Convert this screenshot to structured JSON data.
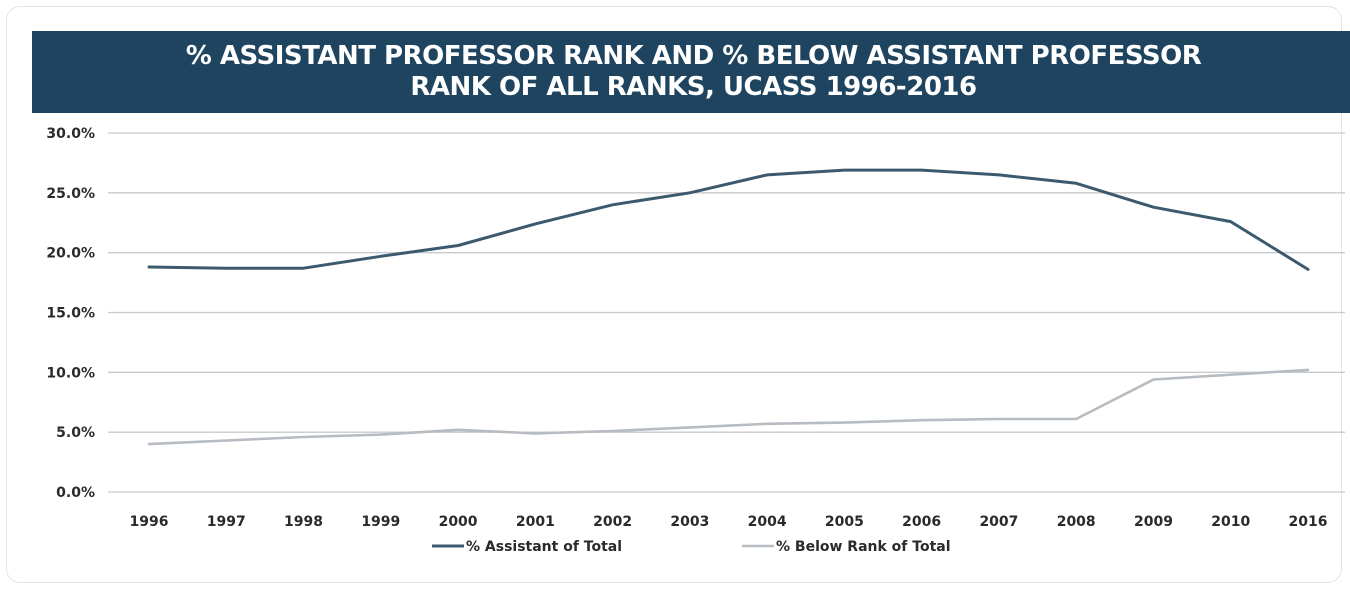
{
  "chart_data": {
    "type": "line",
    "title": "% ASSISTANT PROFESSOR RANK AND % BELOW ASSISTANT PROFESSOR RANK OF ALL RANKS, UCASS 1996-2016",
    "title_lines": [
      "% ASSISTANT PROFESSOR RANK AND % BELOW ASSISTANT PROFESSOR",
      "RANK OF ALL RANKS, UCASS 1996-2016"
    ],
    "xlabel": "",
    "ylabel": "",
    "categories": [
      "1996",
      "1997",
      "1998",
      "1999",
      "2000",
      "2001",
      "2002",
      "2003",
      "2004",
      "2005",
      "2006",
      "2007",
      "2008",
      "2009",
      "2010",
      "2016"
    ],
    "y_ticks": [
      "0.0%",
      "5.0%",
      "10.0%",
      "15.0%",
      "20.0%",
      "25.0%",
      "30.0%"
    ],
    "ylim": [
      0,
      30
    ],
    "grid": true,
    "legend_position": "bottom",
    "colors": {
      "title_band": "#1e4460",
      "grid": "#c8cacc"
    },
    "series": [
      {
        "name": "% Assistant of Total",
        "color": "#3c5a6e",
        "values": [
          18.8,
          18.7,
          18.7,
          19.7,
          20.6,
          22.4,
          24.0,
          25.0,
          26.5,
          26.9,
          26.9,
          26.5,
          25.8,
          23.8,
          22.6,
          18.6
        ]
      },
      {
        "name": "% Below Rank of Total",
        "color": "#b6bcc2",
        "values": [
          4.0,
          4.3,
          4.6,
          4.8,
          5.2,
          4.9,
          5.1,
          5.4,
          5.7,
          5.8,
          6.0,
          6.1,
          6.1,
          9.4,
          9.8,
          10.2
        ]
      }
    ]
  }
}
